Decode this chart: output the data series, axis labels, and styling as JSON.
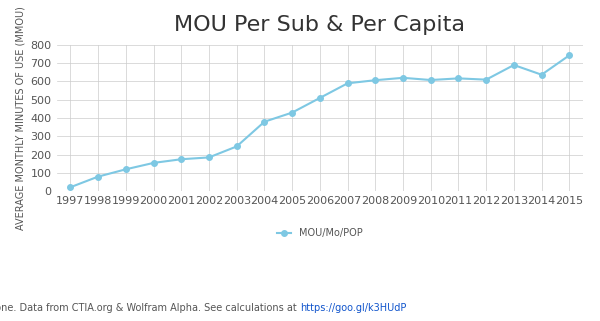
{
  "title": "MOU Per Sub & Per Capita",
  "years": [
    1997,
    1998,
    1999,
    2000,
    2001,
    2002,
    2003,
    2004,
    2005,
    2006,
    2007,
    2008,
    2009,
    2010,
    2011,
    2012,
    2013,
    2014,
    2015
  ],
  "values": [
    22,
    80,
    120,
    155,
    175,
    185,
    245,
    380,
    430,
    510,
    590,
    607,
    620,
    608,
    617,
    610,
    690,
    637,
    743
  ],
  "line_color": "#7ec8e3",
  "marker": "o",
  "marker_size": 4,
  "ylabel": "AVERAGE MONTHLY MINUTES OF USE (MMOU)",
  "ylim": [
    0,
    800
  ],
  "yticks": [
    0,
    100,
    200,
    300,
    400,
    500,
    600,
    700,
    800
  ],
  "legend_label": "MOU/Mo/POP",
  "source_text": "Source: Chad Hart / Voxbone. Data from CTIA.org & Wolfram Alpha. See calculations at ",
  "source_url": "https://goo.gl/k3HUdP",
  "background_color": "#ffffff",
  "grid_color": "#cccccc",
  "title_fontsize": 16,
  "label_fontsize": 7,
  "tick_fontsize": 8,
  "source_fontsize": 7
}
